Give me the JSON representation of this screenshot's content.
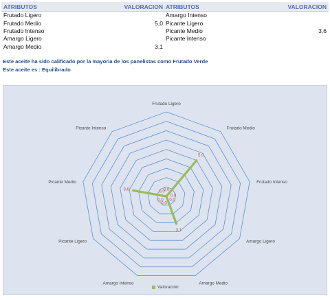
{
  "table_left": {
    "headers": {
      "attr": "ATRIBUTOS",
      "val": "VALORACION"
    },
    "rows": [
      {
        "attr": "Frutado Ligero",
        "val": ""
      },
      {
        "attr": "Frutado Medio",
        "val": "5,0"
      },
      {
        "attr": "Frutado Intenso",
        "val": ""
      },
      {
        "attr": "Amargo Ligero",
        "val": ""
      },
      {
        "attr": "Amargo Medio",
        "val": "3,1"
      }
    ]
  },
  "table_right": {
    "headers": {
      "attr": "ATRIBUTOS",
      "val": "VALORACION"
    },
    "rows": [
      {
        "attr": "Amargo Intenso",
        "val": ""
      },
      {
        "attr": "Picante Ligero",
        "val": ""
      },
      {
        "attr": "Picante Medio",
        "val": "3,6"
      },
      {
        "attr": "Picante Intenso",
        "val": ""
      }
    ]
  },
  "messages": {
    "line1": "Este aceite ha sido calificado por la mayoria de los panelistas como Frutado Verde",
    "line2": "Este aceite es : Equilibrado"
  },
  "colors": {
    "series": "#9bbb59",
    "grid": "#5b8fd0",
    "data_label": "#c0504d",
    "panel_bg": "#dde4f0"
  },
  "chart_data": {
    "type": "radar",
    "categories": [
      "Frutado Ligero",
      "Frutado Medio",
      "Frutado Intenso",
      "Amargo Ligero",
      "Amargo Medio",
      "Amargo Intenso",
      "Picante Ligero",
      "Picante Medio",
      "Picante Intenso"
    ],
    "series": [
      {
        "name": "Valoración",
        "values": [
          0,
          5.0,
          0,
          0,
          3.1,
          0,
          0,
          3.6,
          0
        ],
        "labels": [
          "0,0",
          "5,0",
          "0,0",
          "0,0",
          "3,1",
          "0,0",
          "0,0",
          "3,6",
          "0,0"
        ]
      }
    ],
    "rmax": 9,
    "rings": 9,
    "legend": "bottom"
  }
}
